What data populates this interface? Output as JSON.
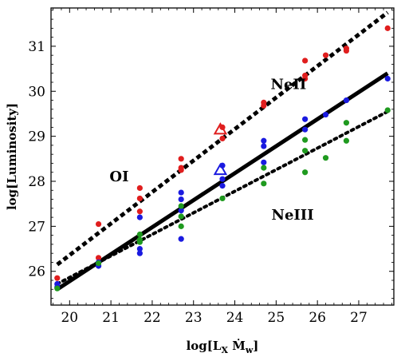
{
  "chart_data": {
    "type": "scatter",
    "xlabel": "log[L_X Ṁ_w]",
    "ylabel": "log[Luminosity]",
    "xlim": [
      19.55,
      27.85
    ],
    "ylim": [
      25.25,
      31.85
    ],
    "xticks": [
      20,
      21,
      22,
      23,
      24,
      25,
      26,
      27
    ],
    "yticks": [
      26,
      27,
      28,
      29,
      30,
      31
    ],
    "grid": false,
    "legend": "none",
    "annotations": [
      {
        "text": "OI",
        "x": 21.2,
        "y": 28.0
      },
      {
        "text": "NeII",
        "x": 25.3,
        "y": 30.05
      },
      {
        "text": "NeIII",
        "x": 25.4,
        "y": 27.15
      }
    ],
    "series": [
      {
        "color": "#e01e1e",
        "points": [
          [
            19.7,
            25.85
          ],
          [
            20.7,
            27.05
          ],
          [
            20.7,
            26.3
          ],
          [
            21.7,
            27.85
          ],
          [
            21.7,
            27.62
          ],
          [
            21.7,
            27.33
          ],
          [
            22.7,
            28.5
          ],
          [
            22.7,
            28.3
          ],
          [
            22.7,
            28.25
          ],
          [
            23.7,
            29.2
          ],
          [
            23.7,
            28.95
          ],
          [
            24.7,
            29.75
          ],
          [
            24.7,
            29.68
          ],
          [
            25.7,
            30.68
          ],
          [
            25.7,
            30.35
          ],
          [
            25.7,
            30.28
          ],
          [
            26.2,
            30.8
          ],
          [
            26.7,
            30.95
          ],
          [
            26.7,
            30.9
          ],
          [
            27.7,
            31.4
          ]
        ]
      },
      {
        "color": "#1a1ae0",
        "points": [
          [
            19.7,
            25.72
          ],
          [
            19.7,
            25.65
          ],
          [
            20.7,
            26.2
          ],
          [
            20.7,
            26.12
          ],
          [
            21.7,
            27.2
          ],
          [
            21.7,
            26.5
          ],
          [
            21.7,
            26.4
          ],
          [
            22.7,
            27.75
          ],
          [
            22.7,
            27.6
          ],
          [
            22.7,
            27.35
          ],
          [
            22.7,
            26.72
          ],
          [
            23.7,
            28.35
          ],
          [
            23.7,
            28.05
          ],
          [
            23.7,
            27.9
          ],
          [
            24.7,
            28.9
          ],
          [
            24.7,
            28.78
          ],
          [
            24.7,
            28.42
          ],
          [
            25.7,
            29.38
          ],
          [
            25.7,
            29.15
          ],
          [
            26.2,
            29.48
          ],
          [
            26.7,
            29.8
          ],
          [
            27.7,
            30.28
          ]
        ]
      },
      {
        "color": "#1f9a1f",
        "points": [
          [
            19.7,
            25.62
          ],
          [
            20.7,
            26.18
          ],
          [
            21.7,
            26.82
          ],
          [
            21.7,
            26.7
          ],
          [
            21.7,
            26.65
          ],
          [
            22.7,
            27.45
          ],
          [
            22.7,
            27.22
          ],
          [
            22.7,
            27.0
          ],
          [
            23.7,
            27.62
          ],
          [
            24.7,
            28.3
          ],
          [
            24.7,
            27.95
          ],
          [
            25.7,
            28.92
          ],
          [
            25.7,
            28.68
          ],
          [
            25.7,
            28.2
          ],
          [
            26.2,
            28.52
          ],
          [
            26.7,
            29.3
          ],
          [
            26.7,
            28.9
          ],
          [
            27.7,
            29.58
          ]
        ]
      }
    ],
    "open_triangles": [
      {
        "color": "#e01e1e",
        "x": 23.65,
        "y": 29.15
      },
      {
        "color": "#1a1ae0",
        "x": 23.65,
        "y": 28.25
      }
    ],
    "fit_lines": [
      {
        "label": "OI",
        "style": "dashed",
        "x": [
          19.7,
          27.7
        ],
        "y": [
          26.15,
          31.75
        ]
      },
      {
        "label": "NeII",
        "style": "solid",
        "x": [
          19.7,
          27.7
        ],
        "y": [
          25.6,
          30.4
        ]
      },
      {
        "label": "NeIII",
        "style": "dotted",
        "x": [
          19.7,
          27.7
        ],
        "y": [
          25.72,
          29.55
        ]
      }
    ]
  }
}
